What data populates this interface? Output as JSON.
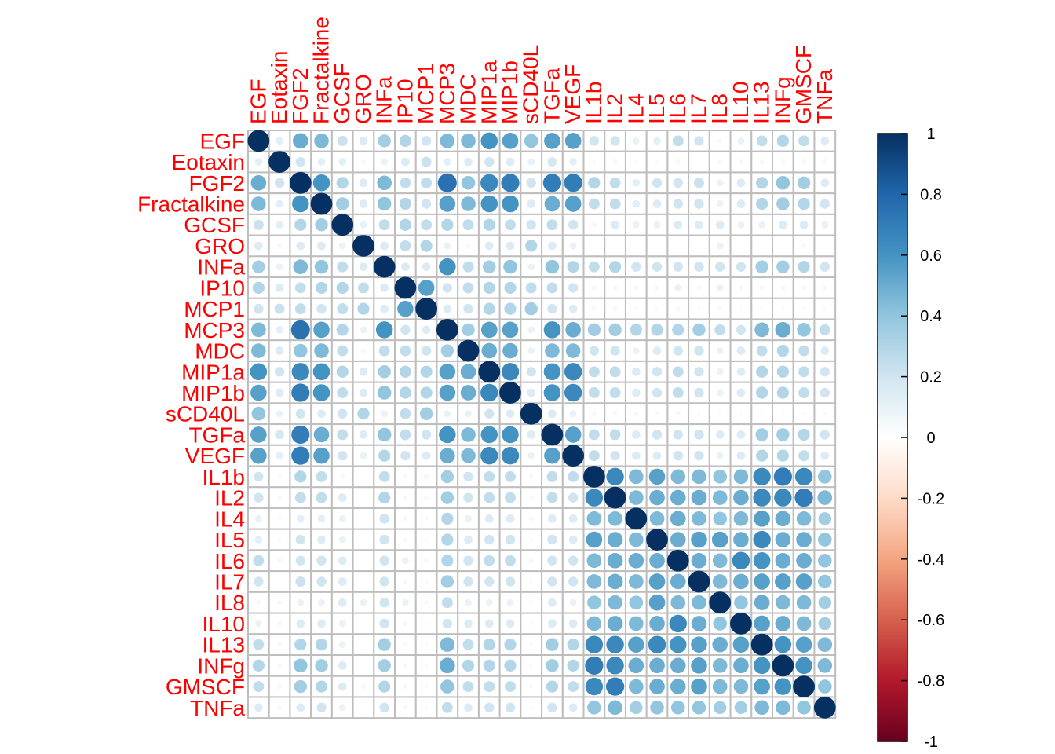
{
  "chart_data": {
    "type": "heatmap",
    "variables": [
      "EGF",
      "Eotaxin",
      "FGF2",
      "Fractalkine",
      "GCSF",
      "GRO",
      "INFa",
      "IP10",
      "MCP1",
      "MCP3",
      "MDC",
      "MIP1a",
      "MIP1b",
      "sCD40L",
      "TGFa",
      "VEGF",
      "IL1b",
      "IL2",
      "IL4",
      "IL5",
      "IL6",
      "IL7",
      "IL8",
      "IL10",
      "IL13",
      "INFg",
      "GMSCF",
      "TNFa"
    ],
    "matrix": [
      [
        1.0,
        0.12,
        0.5,
        0.45,
        0.22,
        0.15,
        0.35,
        0.3,
        0.2,
        0.45,
        0.45,
        0.6,
        0.55,
        0.4,
        0.55,
        0.55,
        0.2,
        0.2,
        0.1,
        0.12,
        0.25,
        0.2,
        0.05,
        0.1,
        0.25,
        0.3,
        0.25,
        0.15
      ],
      [
        0.12,
        1.0,
        0.2,
        0.12,
        0.12,
        0.05,
        0.1,
        0.15,
        0.22,
        0.12,
        0.15,
        0.2,
        0.15,
        0.1,
        0.18,
        0.12,
        0.03,
        0.05,
        0.03,
        0.03,
        0.05,
        0.0,
        0.05,
        0.05,
        0.05,
        0.05,
        0.05,
        0.05
      ],
      [
        0.5,
        0.2,
        1.0,
        0.6,
        0.3,
        0.15,
        0.45,
        0.25,
        0.25,
        0.75,
        0.4,
        0.65,
        0.7,
        0.2,
        0.7,
        0.7,
        0.3,
        0.25,
        0.12,
        0.2,
        0.2,
        0.22,
        0.1,
        0.15,
        0.3,
        0.4,
        0.35,
        0.15
      ],
      [
        0.45,
        0.12,
        0.6,
        1.0,
        0.35,
        0.15,
        0.4,
        0.3,
        0.2,
        0.55,
        0.45,
        0.6,
        0.6,
        0.15,
        0.5,
        0.55,
        0.25,
        0.25,
        0.12,
        0.15,
        0.2,
        0.2,
        0.1,
        0.15,
        0.3,
        0.35,
        0.3,
        0.2
      ],
      [
        0.22,
        0.12,
        0.3,
        0.35,
        1.0,
        0.1,
        0.25,
        0.3,
        0.25,
        0.3,
        0.25,
        0.3,
        0.25,
        0.2,
        0.25,
        0.2,
        0.05,
        0.15,
        0.1,
        0.1,
        0.15,
        0.15,
        0.15,
        0.1,
        0.1,
        0.15,
        0.15,
        0.1
      ],
      [
        0.15,
        0.05,
        0.15,
        0.15,
        0.1,
        1.0,
        0.15,
        0.25,
        0.3,
        0.1,
        0.05,
        0.15,
        0.15,
        0.3,
        0.15,
        0.1,
        0.0,
        0.0,
        0.0,
        0.0,
        0.0,
        0.0,
        0.1,
        0.0,
        0.0,
        0.0,
        0.05,
        0.0
      ],
      [
        0.35,
        0.1,
        0.45,
        0.4,
        0.25,
        0.15,
        1.0,
        0.15,
        0.15,
        0.6,
        0.25,
        0.35,
        0.4,
        0.1,
        0.4,
        0.3,
        0.25,
        0.3,
        0.2,
        0.2,
        0.2,
        0.2,
        0.2,
        0.2,
        0.35,
        0.35,
        0.3,
        0.2
      ],
      [
        0.3,
        0.15,
        0.25,
        0.3,
        0.3,
        0.25,
        0.15,
        1.0,
        0.55,
        0.2,
        0.25,
        0.3,
        0.3,
        0.25,
        0.25,
        0.2,
        0.05,
        0.05,
        0.05,
        0.05,
        0.1,
        0.05,
        0.1,
        0.05,
        0.05,
        0.05,
        0.05,
        0.05
      ],
      [
        0.2,
        0.22,
        0.25,
        0.2,
        0.25,
        0.3,
        0.15,
        0.55,
        1.0,
        0.15,
        0.2,
        0.3,
        0.3,
        0.35,
        0.2,
        0.15,
        0.05,
        0.05,
        0.03,
        0.03,
        0.05,
        0.03,
        0.05,
        0.03,
        0.03,
        0.03,
        0.03,
        0.03
      ],
      [
        0.45,
        0.12,
        0.75,
        0.55,
        0.3,
        0.1,
        0.6,
        0.2,
        0.15,
        1.0,
        0.35,
        0.55,
        0.55,
        0.1,
        0.6,
        0.5,
        0.35,
        0.35,
        0.3,
        0.3,
        0.3,
        0.35,
        0.25,
        0.2,
        0.45,
        0.5,
        0.4,
        0.25
      ],
      [
        0.45,
        0.15,
        0.4,
        0.45,
        0.25,
        0.05,
        0.25,
        0.25,
        0.2,
        0.35,
        1.0,
        0.5,
        0.5,
        0.1,
        0.45,
        0.45,
        0.2,
        0.2,
        0.1,
        0.15,
        0.2,
        0.2,
        0.1,
        0.15,
        0.25,
        0.3,
        0.25,
        0.15
      ],
      [
        0.6,
        0.2,
        0.65,
        0.6,
        0.3,
        0.15,
        0.35,
        0.3,
        0.3,
        0.55,
        0.5,
        1.0,
        0.65,
        0.2,
        0.6,
        0.65,
        0.25,
        0.25,
        0.15,
        0.2,
        0.25,
        0.2,
        0.1,
        0.15,
        0.3,
        0.3,
        0.25,
        0.2
      ],
      [
        0.55,
        0.15,
        0.7,
        0.6,
        0.25,
        0.15,
        0.4,
        0.3,
        0.3,
        0.55,
        0.5,
        0.65,
        1.0,
        0.15,
        0.6,
        0.65,
        0.25,
        0.25,
        0.15,
        0.2,
        0.25,
        0.2,
        0.1,
        0.15,
        0.3,
        0.3,
        0.25,
        0.2
      ],
      [
        0.4,
        0.1,
        0.2,
        0.15,
        0.2,
        0.3,
        0.1,
        0.25,
        0.35,
        0.1,
        0.1,
        0.2,
        0.15,
        1.0,
        0.15,
        0.1,
        0.05,
        0.05,
        0.05,
        0.03,
        0.05,
        0.03,
        0.03,
        0.03,
        0.03,
        0.03,
        0.03,
        0.03
      ],
      [
        0.55,
        0.18,
        0.7,
        0.5,
        0.25,
        0.15,
        0.4,
        0.25,
        0.2,
        0.6,
        0.45,
        0.6,
        0.6,
        0.15,
        1.0,
        0.55,
        0.25,
        0.25,
        0.15,
        0.2,
        0.2,
        0.2,
        0.15,
        0.15,
        0.35,
        0.35,
        0.3,
        0.2
      ],
      [
        0.55,
        0.12,
        0.7,
        0.55,
        0.2,
        0.1,
        0.3,
        0.2,
        0.15,
        0.5,
        0.45,
        0.65,
        0.65,
        0.1,
        0.55,
        1.0,
        0.25,
        0.2,
        0.15,
        0.15,
        0.2,
        0.2,
        0.1,
        0.15,
        0.3,
        0.3,
        0.25,
        0.15
      ],
      [
        0.2,
        0.03,
        0.3,
        0.25,
        0.05,
        0.0,
        0.25,
        0.05,
        0.05,
        0.35,
        0.2,
        0.25,
        0.25,
        0.05,
        0.25,
        0.25,
        1.0,
        0.65,
        0.45,
        0.55,
        0.45,
        0.45,
        0.4,
        0.45,
        0.65,
        0.7,
        0.65,
        0.4
      ],
      [
        0.2,
        0.05,
        0.25,
        0.25,
        0.15,
        0.0,
        0.3,
        0.05,
        0.05,
        0.35,
        0.2,
        0.25,
        0.25,
        0.05,
        0.25,
        0.2,
        0.65,
        1.0,
        0.45,
        0.5,
        0.5,
        0.5,
        0.45,
        0.5,
        0.65,
        0.65,
        0.7,
        0.45
      ],
      [
        0.1,
        0.03,
        0.12,
        0.12,
        0.1,
        0.0,
        0.2,
        0.05,
        0.03,
        0.3,
        0.1,
        0.15,
        0.15,
        0.05,
        0.15,
        0.15,
        0.45,
        0.45,
        1.0,
        0.45,
        0.5,
        0.45,
        0.4,
        0.45,
        0.55,
        0.5,
        0.45,
        0.35
      ],
      [
        0.12,
        0.03,
        0.2,
        0.15,
        0.1,
        0.0,
        0.2,
        0.05,
        0.03,
        0.3,
        0.15,
        0.2,
        0.2,
        0.03,
        0.2,
        0.15,
        0.55,
        0.5,
        0.45,
        1.0,
        0.5,
        0.55,
        0.55,
        0.5,
        0.65,
        0.5,
        0.5,
        0.4
      ],
      [
        0.25,
        0.05,
        0.2,
        0.2,
        0.15,
        0.0,
        0.2,
        0.1,
        0.05,
        0.3,
        0.2,
        0.25,
        0.25,
        0.05,
        0.2,
        0.2,
        0.45,
        0.5,
        0.5,
        0.5,
        1.0,
        0.5,
        0.45,
        0.65,
        0.6,
        0.5,
        0.5,
        0.4
      ],
      [
        0.2,
        0.0,
        0.22,
        0.2,
        0.15,
        0.0,
        0.2,
        0.05,
        0.03,
        0.35,
        0.2,
        0.2,
        0.2,
        0.03,
        0.2,
        0.2,
        0.45,
        0.5,
        0.45,
        0.55,
        0.5,
        1.0,
        0.45,
        0.5,
        0.55,
        0.55,
        0.55,
        0.4
      ],
      [
        0.05,
        0.05,
        0.1,
        0.1,
        0.15,
        0.1,
        0.2,
        0.1,
        0.05,
        0.25,
        0.1,
        0.1,
        0.1,
        0.03,
        0.15,
        0.1,
        0.4,
        0.45,
        0.4,
        0.55,
        0.45,
        0.45,
        1.0,
        0.4,
        0.5,
        0.45,
        0.45,
        0.35
      ],
      [
        0.1,
        0.05,
        0.15,
        0.15,
        0.1,
        0.0,
        0.2,
        0.05,
        0.03,
        0.2,
        0.15,
        0.15,
        0.15,
        0.03,
        0.15,
        0.15,
        0.45,
        0.5,
        0.45,
        0.5,
        0.65,
        0.5,
        0.4,
        1.0,
        0.55,
        0.5,
        0.45,
        0.35
      ],
      [
        0.25,
        0.05,
        0.3,
        0.3,
        0.1,
        0.0,
        0.35,
        0.05,
        0.03,
        0.45,
        0.25,
        0.3,
        0.3,
        0.03,
        0.35,
        0.3,
        0.65,
        0.65,
        0.55,
        0.65,
        0.6,
        0.55,
        0.5,
        0.55,
        1.0,
        0.6,
        0.55,
        0.45
      ],
      [
        0.3,
        0.05,
        0.4,
        0.35,
        0.15,
        0.0,
        0.35,
        0.05,
        0.03,
        0.5,
        0.3,
        0.3,
        0.3,
        0.03,
        0.35,
        0.3,
        0.7,
        0.65,
        0.5,
        0.5,
        0.5,
        0.55,
        0.45,
        0.5,
        0.6,
        1.0,
        0.6,
        0.45
      ],
      [
        0.25,
        0.05,
        0.35,
        0.3,
        0.15,
        0.05,
        0.3,
        0.05,
        0.03,
        0.4,
        0.25,
        0.25,
        0.25,
        0.03,
        0.3,
        0.25,
        0.65,
        0.7,
        0.45,
        0.5,
        0.5,
        0.55,
        0.45,
        0.45,
        0.55,
        0.6,
        1.0,
        0.4
      ],
      [
        0.15,
        0.05,
        0.15,
        0.2,
        0.1,
        0.0,
        0.2,
        0.05,
        0.03,
        0.25,
        0.15,
        0.2,
        0.2,
        0.03,
        0.2,
        0.15,
        0.4,
        0.45,
        0.35,
        0.4,
        0.4,
        0.4,
        0.35,
        0.35,
        0.45,
        0.45,
        0.4,
        1.0
      ]
    ],
    "colorbar": {
      "min": -1,
      "max": 1,
      "tick_labels": [
        "1",
        "0.8",
        "0.6",
        "0.4",
        "0.2",
        "0",
        "-0.2",
        "-0.4",
        "-0.6",
        "-0.8",
        "-1"
      ],
      "tick_values": [
        1,
        0.8,
        0.6,
        0.4,
        0.2,
        0,
        -0.2,
        -0.4,
        -0.6,
        -0.8,
        -1
      ],
      "colors": [
        "#67001F",
        "#B2182B",
        "#D6604D",
        "#F4A582",
        "#FDDBC7",
        "#FFFFFF",
        "#D1E5F0",
        "#92C5DE",
        "#4393C3",
        "#2166AC",
        "#053061"
      ]
    },
    "label_color": "#FF0000",
    "grid_color": "#BEBEBE",
    "title": "",
    "xlabel": "",
    "ylabel": ""
  }
}
